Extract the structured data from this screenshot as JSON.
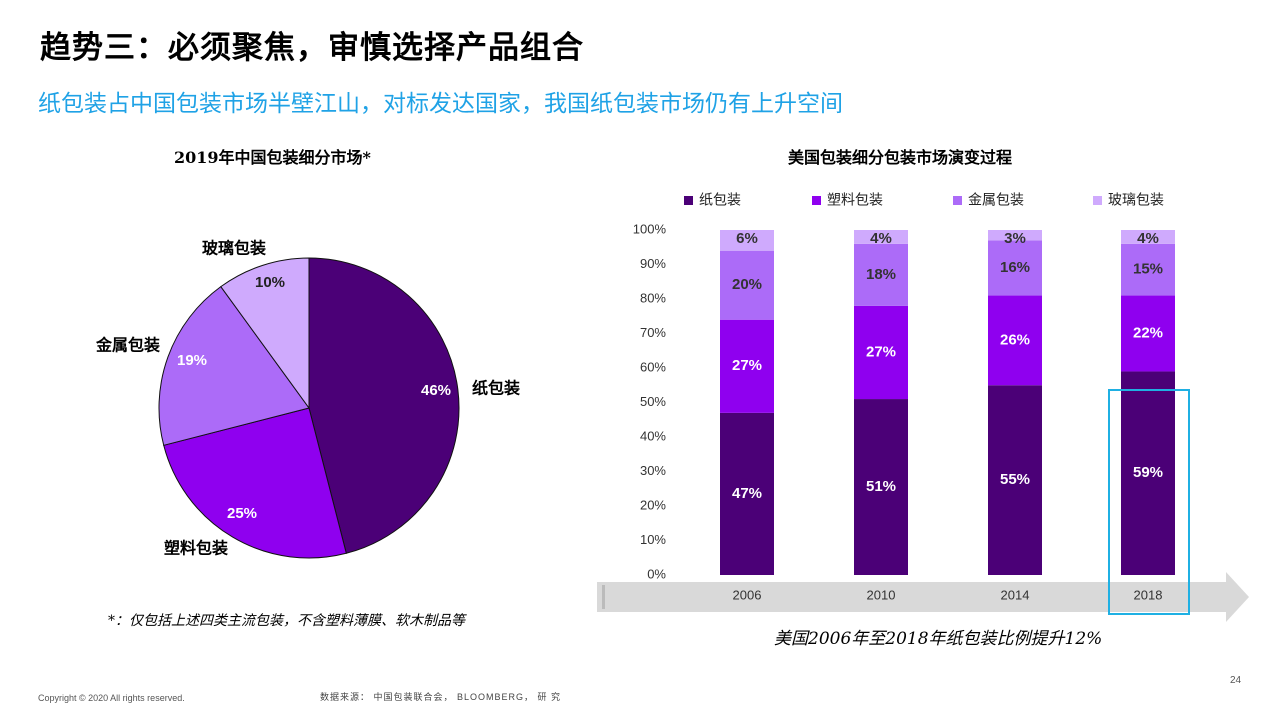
{
  "header": {
    "title": "趋势三：必须聚焦，审慎选择产品组合",
    "subtitle": "纸包装占中国包装市场半壁江山，对标发达国家，我国纸包装市场仍有上升空间"
  },
  "colors": {
    "paper": "#4b0077",
    "plastic": "#8f00ef",
    "metal": "#ac6bf8",
    "glass": "#cfaafd",
    "highlight": "#1fb0e3",
    "subtitle": "#1fa2e6",
    "arrow": "#d9d9d9"
  },
  "chart_data": [
    {
      "type": "pie",
      "title": "2019年中国包装细分市场*",
      "slices": [
        {
          "label": "纸包装",
          "value": 46,
          "value_label": "46%"
        },
        {
          "label": "塑料包装",
          "value": 25,
          "value_label": "25%"
        },
        {
          "label": "金属包装",
          "value": 19,
          "value_label": "19%"
        },
        {
          "label": "玻璃包装",
          "value": 10,
          "value_label": "10%"
        }
      ]
    },
    {
      "type": "bar",
      "stacked": true,
      "title": "美国包装细分包装市场演变过程",
      "categories": [
        "2006",
        "2010",
        "2014",
        "2018"
      ],
      "ylim": [
        0,
        100
      ],
      "yticks": [
        "0%",
        "10%",
        "20%",
        "30%",
        "40%",
        "50%",
        "60%",
        "70%",
        "80%",
        "90%",
        "100%"
      ],
      "legend_position": "top",
      "series": [
        {
          "name": "纸包装",
          "values": [
            47,
            51,
            55,
            59
          ],
          "labels": [
            "47%",
            "51%",
            "55%",
            "59%"
          ]
        },
        {
          "name": "塑料包装",
          "values": [
            27,
            27,
            26,
            22
          ],
          "labels": [
            "27%",
            "27%",
            "26%",
            "22%"
          ]
        },
        {
          "name": "金属包装",
          "values": [
            20,
            18,
            16,
            15
          ],
          "labels": [
            "20%",
            "18%",
            "16%",
            "15%"
          ]
        },
        {
          "name": "玻璃包装",
          "values": [
            6,
            4,
            3,
            4
          ],
          "labels": [
            "6%",
            "4%",
            "3%",
            "4%"
          ]
        }
      ],
      "highlight_category": "2018"
    }
  ],
  "footnote": "*：仅包括上述四类主流包装，不含塑料薄膜、软木制品等",
  "caption": "美国2006年至2018年纸包装比例提升12%",
  "footer": {
    "copyright": "Copyright © 2020 All rights reserved.",
    "source": "数据来源： 中国包装联合会， BLOOMBERG， 研 究",
    "page_number": "24"
  }
}
